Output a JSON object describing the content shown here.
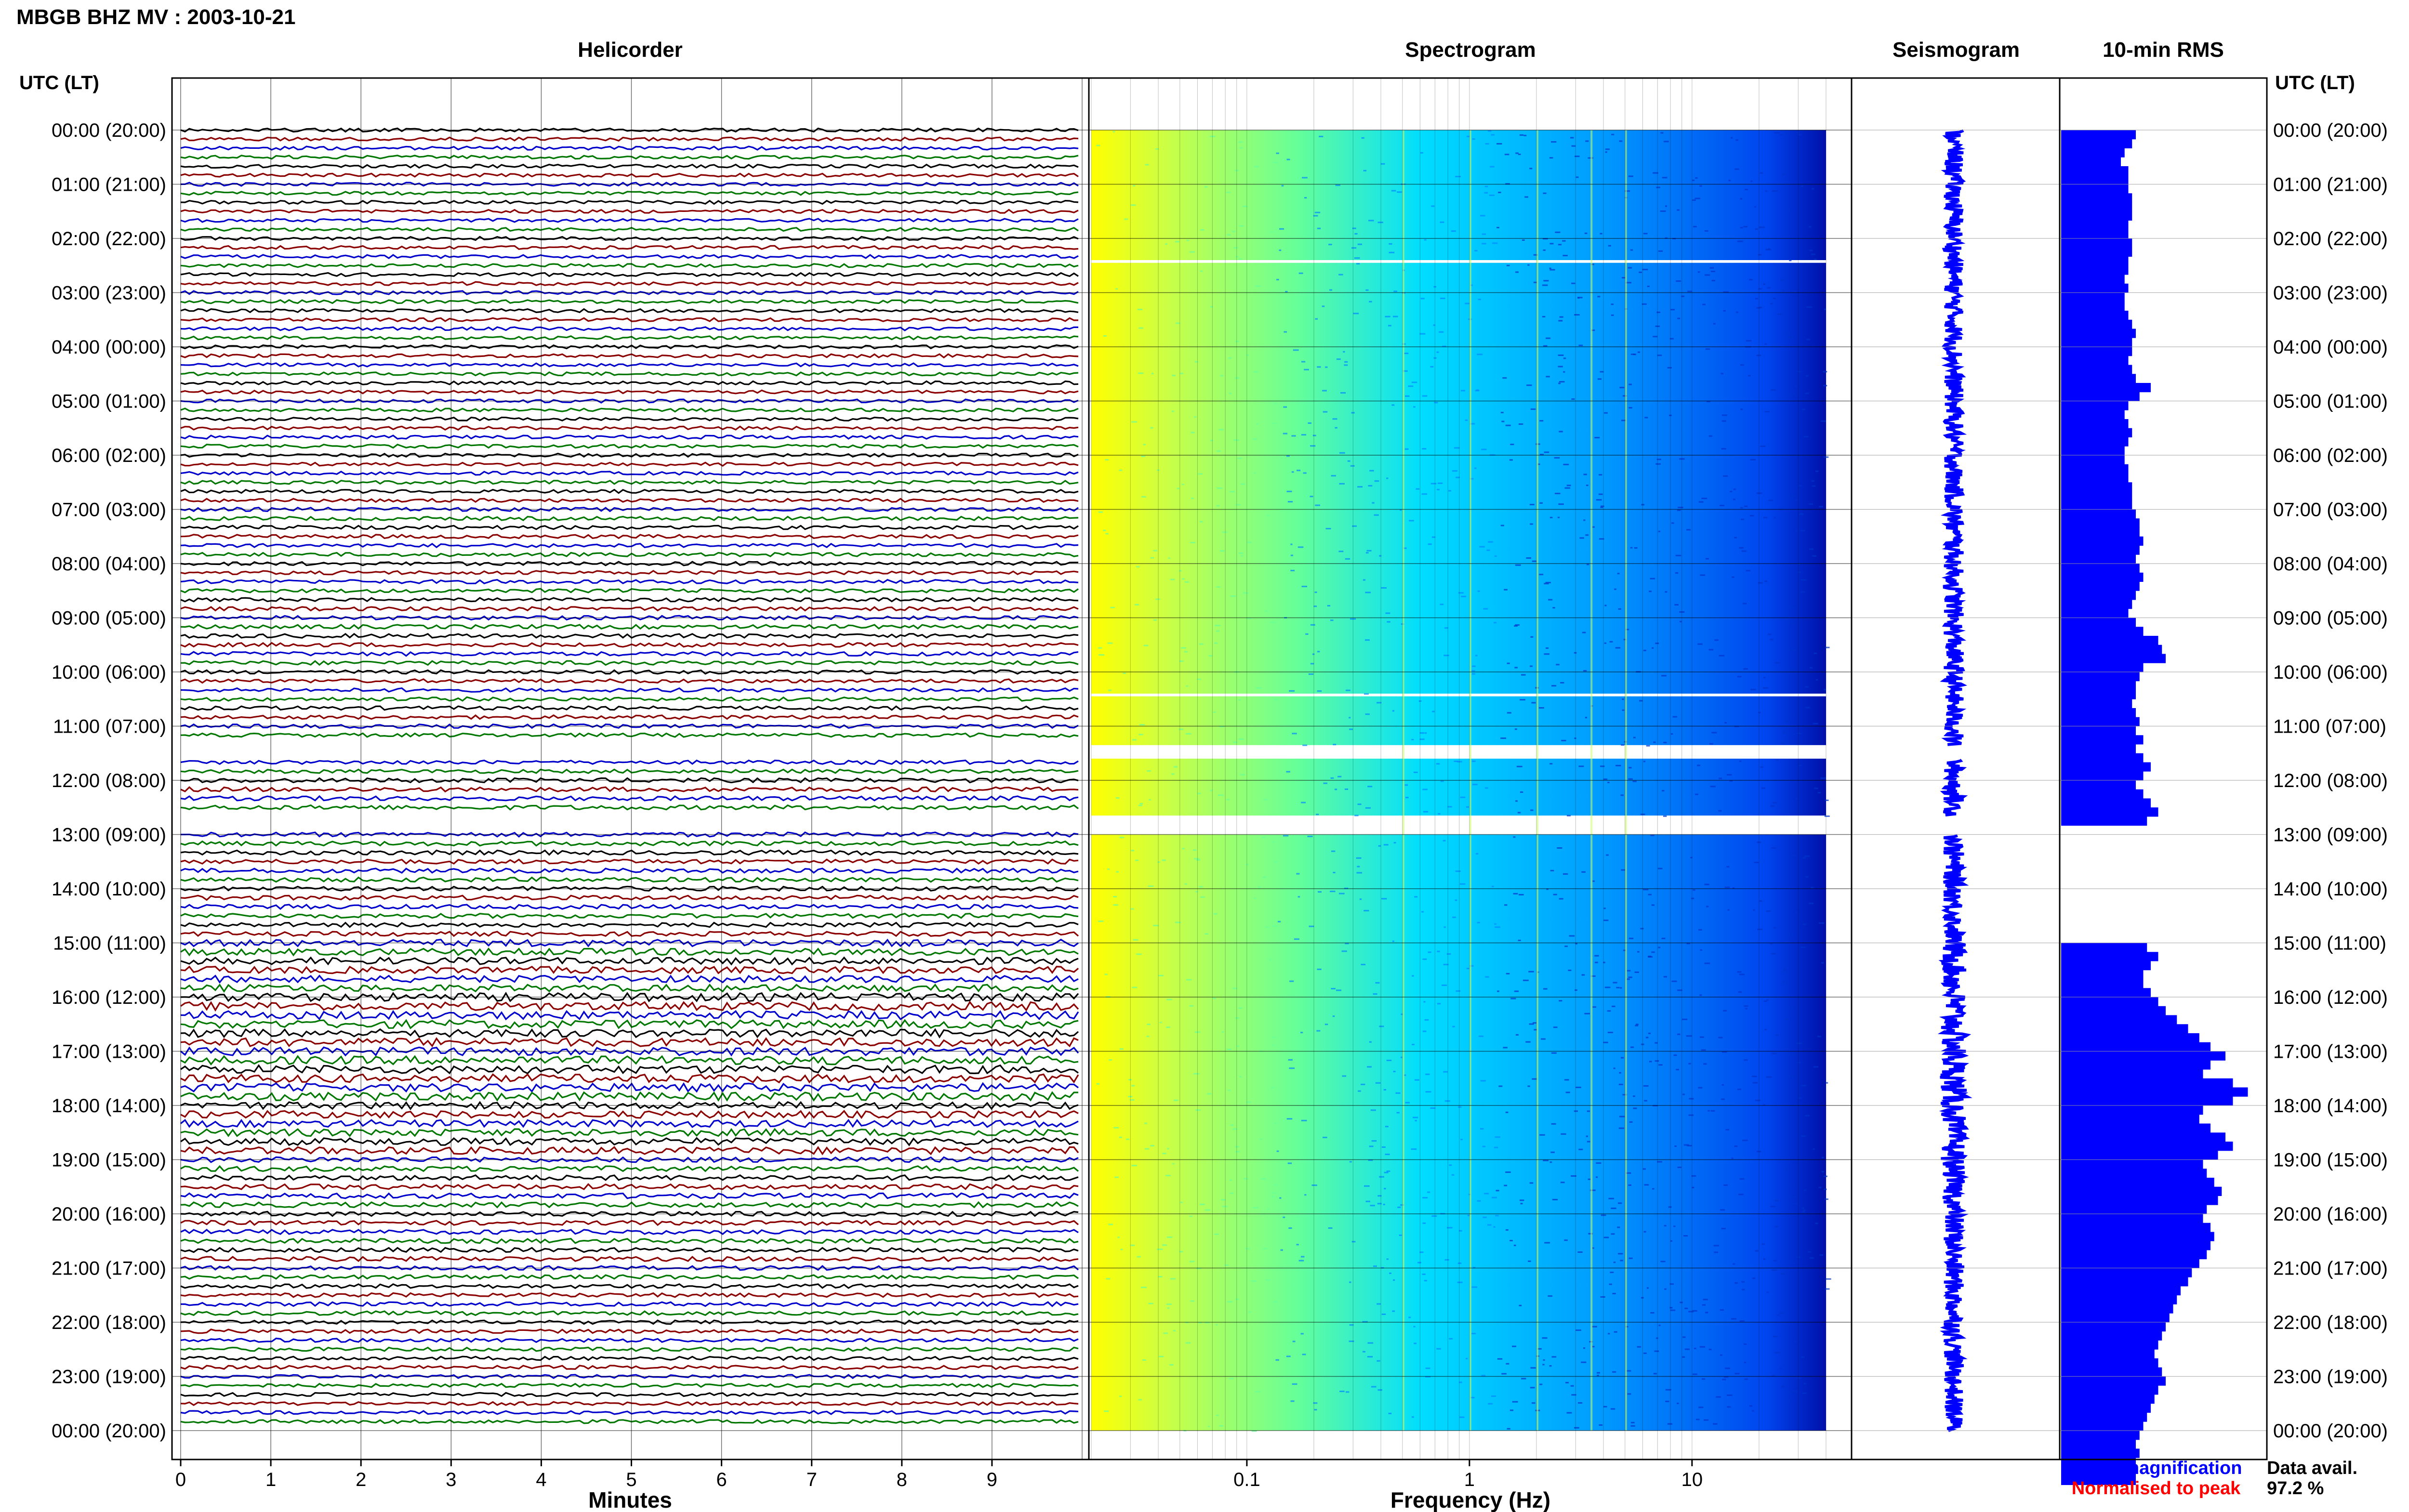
{
  "header": {
    "station_title": "MBGB BHZ MV : 2003-10-21",
    "time_axis_heading": "UTC (LT)"
  },
  "panels": {
    "helicorder": "Helicorder",
    "spectrogram": "Spectrogram",
    "seismogram": "Seismogram",
    "rms": "10-min RMS"
  },
  "axes": {
    "minutes_label": "Minutes",
    "frequency_label": "Frequency (Hz)"
  },
  "legend": {
    "fixed": "Fixed magnification",
    "normalised": "Normalised to peak",
    "fixed_color": "#0000ff",
    "normalised_color": "#ff0000"
  },
  "availability": {
    "label": "Data avail.",
    "value": "97.2 %"
  },
  "chart_data": [
    {
      "type": "line",
      "title": "Helicorder",
      "xlabel": "Minutes",
      "x_ticks": [
        "0",
        "1",
        "2",
        "3",
        "4",
        "5",
        "6",
        "7",
        "8",
        "9"
      ],
      "xlim": [
        0,
        10
      ],
      "trace_colors": [
        "#000000",
        "#8b0000",
        "#0000cc",
        "#007700"
      ],
      "time_labels": [
        "00:00 (20:00)",
        "01:00 (21:00)",
        "02:00 (22:00)",
        "03:00 (23:00)",
        "04:00 (00:00)",
        "05:00 (01:00)",
        "06:00 (02:00)",
        "07:00 (03:00)",
        "08:00 (04:00)",
        "09:00 (05:00)",
        "10:00 (06:00)",
        "11:00 (07:00)",
        "12:00 (08:00)",
        "13:00 (09:00)",
        "14:00 (10:00)",
        "15:00 (11:00)",
        "16:00 (12:00)",
        "17:00 (13:00)",
        "18:00 (14:00)",
        "19:00 (15:00)",
        "20:00 (16:00)",
        "21:00 (17:00)",
        "22:00 (18:00)",
        "23:00 (19:00)",
        "00:00 (20:00)"
      ],
      "gaps_hours": [
        [
          11.35,
          11.6
        ],
        [
          12.65,
          13.0
        ]
      ],
      "amplitude_per_hour": [
        1.0,
        1.0,
        1.0,
        1.0,
        1.0,
        1.0,
        1.0,
        1.1,
        1.1,
        1.2,
        1.1,
        1.1,
        1.3,
        1.3,
        1.3,
        2.0,
        2.4,
        2.4,
        2.1,
        1.5,
        1.3,
        1.2,
        1.1,
        1.0
      ]
    },
    {
      "type": "heatmap",
      "title": "Spectrogram",
      "xlabel": "Frequency (Hz)",
      "x_scale": "log",
      "x_range_hz": [
        0.02,
        40
      ],
      "x_ticks": [
        "0.1",
        "1",
        "10"
      ],
      "colormap": [
        "#ffff00",
        "#88ff66",
        "#00ccff",
        "#0077ff",
        "#0022aa"
      ],
      "gaps_hours": [
        [
          2.4,
          2.45
        ],
        [
          10.4,
          10.45
        ],
        [
          11.35,
          11.6
        ],
        [
          12.65,
          13.0
        ]
      ]
    },
    {
      "type": "line",
      "title": "Seismogram",
      "color": "#0000ff",
      "gaps_hours": [
        [
          11.35,
          11.6
        ],
        [
          12.65,
          13.0
        ]
      ]
    },
    {
      "type": "bar",
      "title": "10-min RMS",
      "orientation": "horizontal",
      "color": "#0000ff",
      "interval_minutes": 10,
      "values": [
        1.0,
        0.95,
        0.85,
        0.8,
        0.9,
        0.9,
        0.9,
        0.95,
        0.95,
        0.95,
        0.9,
        0.9,
        0.95,
        0.95,
        0.9,
        0.9,
        0.85,
        0.9,
        0.85,
        0.85,
        0.9,
        0.95,
        1.0,
        0.95,
        0.95,
        0.9,
        0.95,
        1.0,
        1.2,
        1.05,
        0.9,
        0.85,
        0.9,
        0.95,
        0.9,
        0.85,
        0.85,
        0.9,
        0.9,
        0.95,
        0.95,
        0.95,
        1.0,
        1.05,
        1.05,
        1.1,
        1.05,
        1.0,
        1.05,
        1.1,
        1.05,
        1.0,
        0.95,
        0.9,
        1.0,
        1.1,
        1.3,
        1.35,
        1.4,
        1.1,
        1.05,
        1.0,
        1.0,
        0.95,
        1.0,
        1.05,
        1.0,
        1.1,
        1.0,
        1.1,
        1.2,
        1.1,
        1.0,
        1.1,
        1.2,
        1.3,
        1.15,
        0.0,
        0.0,
        0.0,
        0.0,
        0.0,
        0.0,
        0.0,
        0.0,
        0.0,
        0.0,
        0.0,
        0.0,
        0.0,
        1.15,
        1.3,
        1.2,
        1.1,
        1.1,
        1.2,
        1.3,
        1.4,
        1.55,
        1.7,
        1.85,
        2.0,
        2.2,
        2.0,
        1.9,
        2.3,
        2.5,
        2.3,
        1.9,
        1.85,
        2.0,
        2.2,
        2.3,
        2.1,
        1.9,
        1.95,
        2.05,
        2.15,
        2.1,
        1.95,
        1.9,
        2.0,
        2.05,
        2.0,
        1.95,
        1.85,
        1.75,
        1.7,
        1.6,
        1.55,
        1.5,
        1.45,
        1.4,
        1.35,
        1.3,
        1.25,
        1.3,
        1.35,
        1.4,
        1.3,
        1.25,
        1.2,
        1.15,
        1.1,
        1.05,
        1.0,
        1.05,
        1.0,
        1.0,
        1.0
      ]
    }
  ]
}
